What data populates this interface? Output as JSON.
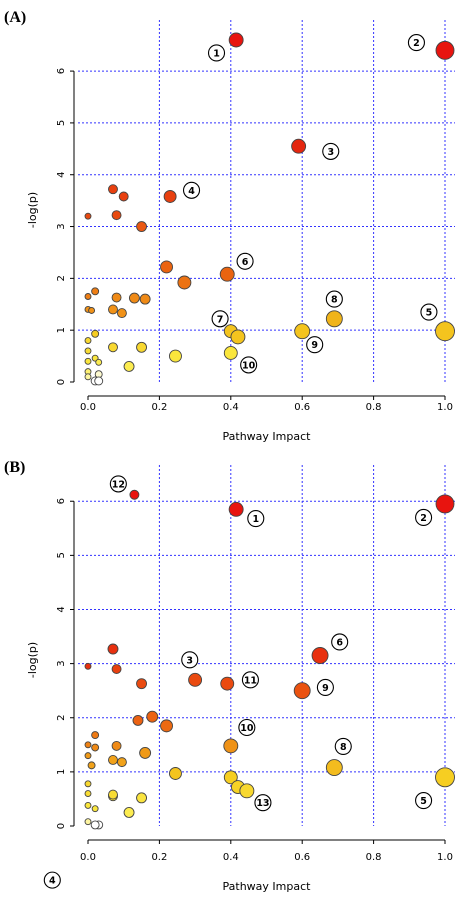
{
  "chart_data": [
    {
      "type": "scatter",
      "panel_label": "(A)",
      "xlabel": "Pathway Impact",
      "ylabel": "-log(p)",
      "xlim": [
        0,
        1.0
      ],
      "ylim": [
        0,
        6.6
      ],
      "xticks": [
        "0.0",
        "0.2",
        "0.4",
        "0.6",
        "0.8",
        "1.0"
      ],
      "yticks": [
        "0",
        "1",
        "2",
        "3",
        "4",
        "5",
        "6"
      ],
      "grid": true,
      "points": [
        {
          "x": 0.415,
          "y": 6.6,
          "r": 7,
          "color": "#e8140f"
        },
        {
          "x": 1.0,
          "y": 6.4,
          "r": 9,
          "color": "#e8140f"
        },
        {
          "x": 0.59,
          "y": 4.55,
          "r": 7,
          "color": "#e4260f"
        },
        {
          "x": 0.07,
          "y": 3.72,
          "r": 4.5,
          "color": "#e8400f"
        },
        {
          "x": 0.1,
          "y": 3.58,
          "r": 4.5,
          "color": "#e8400f"
        },
        {
          "x": 0.23,
          "y": 3.58,
          "r": 6,
          "color": "#e8400f"
        },
        {
          "x": 0.0,
          "y": 3.2,
          "r": 3,
          "color": "#e84a10"
        },
        {
          "x": 0.08,
          "y": 3.22,
          "r": 4.5,
          "color": "#e84a10"
        },
        {
          "x": 0.15,
          "y": 3.0,
          "r": 5,
          "color": "#ea5812"
        },
        {
          "x": 0.22,
          "y": 2.22,
          "r": 6,
          "color": "#ea6410"
        },
        {
          "x": 0.39,
          "y": 2.08,
          "r": 7,
          "color": "#ea6410"
        },
        {
          "x": 0.27,
          "y": 1.92,
          "r": 6.5,
          "color": "#ec7212"
        },
        {
          "x": 0.02,
          "y": 1.75,
          "r": 3.5,
          "color": "#ee7e14"
        },
        {
          "x": 0.0,
          "y": 1.65,
          "r": 3,
          "color": "#ee7e14"
        },
        {
          "x": 0.08,
          "y": 1.63,
          "r": 4.5,
          "color": "#ef8a16"
        },
        {
          "x": 0.13,
          "y": 1.62,
          "r": 5,
          "color": "#ef8a16"
        },
        {
          "x": 0.16,
          "y": 1.6,
          "r": 5,
          "color": "#ef8a16"
        },
        {
          "x": 0.07,
          "y": 1.4,
          "r": 4.5,
          "color": "#f19218"
        },
        {
          "x": 0.095,
          "y": 1.33,
          "r": 4.5,
          "color": "#f19218"
        },
        {
          "x": 0.0,
          "y": 1.4,
          "r": 3,
          "color": "#f19218"
        },
        {
          "x": 0.01,
          "y": 1.38,
          "r": 3,
          "color": "#f19218"
        },
        {
          "x": 0.69,
          "y": 1.22,
          "r": 8,
          "color": "#f0b41a"
        },
        {
          "x": 1.0,
          "y": 0.98,
          "r": 9.5,
          "color": "#f4c41e"
        },
        {
          "x": 0.6,
          "y": 0.98,
          "r": 7.5,
          "color": "#f4c41e"
        },
        {
          "x": 0.4,
          "y": 0.98,
          "r": 6.5,
          "color": "#f4c41e"
        },
        {
          "x": 0.42,
          "y": 0.87,
          "r": 7,
          "color": "#f4c41e"
        },
        {
          "x": 0.02,
          "y": 0.93,
          "r": 3.5,
          "color": "#f6cc22"
        },
        {
          "x": 0.0,
          "y": 0.8,
          "r": 3,
          "color": "#f8d830"
        },
        {
          "x": 0.07,
          "y": 0.67,
          "r": 4.5,
          "color": "#f8d830"
        },
        {
          "x": 0.15,
          "y": 0.67,
          "r": 5,
          "color": "#f8d830"
        },
        {
          "x": 0.0,
          "y": 0.6,
          "r": 3,
          "color": "#f8dc34"
        },
        {
          "x": 0.4,
          "y": 0.56,
          "r": 6.5,
          "color": "#fae63c"
        },
        {
          "x": 0.245,
          "y": 0.5,
          "r": 6,
          "color": "#fae63c"
        },
        {
          "x": 0.02,
          "y": 0.46,
          "r": 3,
          "color": "#fae63c"
        },
        {
          "x": 0.0,
          "y": 0.4,
          "r": 3,
          "color": "#fae63c"
        },
        {
          "x": 0.115,
          "y": 0.3,
          "r": 5,
          "color": "#fcec50"
        },
        {
          "x": 0.03,
          "y": 0.38,
          "r": 3,
          "color": "#fcec50"
        },
        {
          "x": 0.0,
          "y": 0.2,
          "r": 3,
          "color": "#fdf070"
        },
        {
          "x": 0.0,
          "y": 0.1,
          "r": 3,
          "color": "#fdf6a0"
        },
        {
          "x": 0.03,
          "y": 0.15,
          "r": 3.5,
          "color": "#fefacf"
        },
        {
          "x": 0.02,
          "y": 0.02,
          "r": 4,
          "color": "#ffffff"
        },
        {
          "x": 0.03,
          "y": 0.02,
          "r": 4,
          "color": "#ffffff"
        }
      ],
      "annotations": [
        {
          "label": "1",
          "x": 0.36,
          "y": 6.35
        },
        {
          "label": "2",
          "x": 0.92,
          "y": 6.55
        },
        {
          "label": "3",
          "x": 0.68,
          "y": 4.45
        },
        {
          "label": "4",
          "x": 0.29,
          "y": 3.7
        },
        {
          "label": "5",
          "x": 0.955,
          "y": 1.35
        },
        {
          "label": "6",
          "x": 0.44,
          "y": 2.33
        },
        {
          "label": "7",
          "x": 0.37,
          "y": 1.22
        },
        {
          "label": "8",
          "x": 0.69,
          "y": 1.6
        },
        {
          "label": "9",
          "x": 0.635,
          "y": 0.72
        },
        {
          "label": "10",
          "x": 0.45,
          "y": 0.33
        }
      ]
    },
    {
      "type": "scatter",
      "panel_label": "(B)",
      "xlabel": "Pathway Impact",
      "ylabel": "-log(p)",
      "xlim": [
        0,
        1.0
      ],
      "ylim": [
        0,
        6.3
      ],
      "xticks": [
        "0.0",
        "0.2",
        "0.4",
        "0.6",
        "0.8",
        "1.0"
      ],
      "yticks": [
        "0",
        "1",
        "2",
        "3",
        "4",
        "5",
        "6"
      ],
      "grid": true,
      "points": [
        {
          "x": 0.13,
          "y": 6.12,
          "r": 4.5,
          "color": "#e8140f"
        },
        {
          "x": 0.415,
          "y": 5.85,
          "r": 7,
          "color": "#e8140f"
        },
        {
          "x": 1.0,
          "y": 5.95,
          "r": 9,
          "color": "#e8140f"
        },
        {
          "x": 0.07,
          "y": 3.27,
          "r": 5,
          "color": "#e8300f"
        },
        {
          "x": 0.65,
          "y": 3.15,
          "r": 8,
          "color": "#e8300f"
        },
        {
          "x": 0.0,
          "y": 2.95,
          "r": 3,
          "color": "#e8300f"
        },
        {
          "x": 0.08,
          "y": 2.9,
          "r": 4.5,
          "color": "#e8400f"
        },
        {
          "x": 0.3,
          "y": 2.7,
          "r": 6.5,
          "color": "#ea4a10"
        },
        {
          "x": 0.39,
          "y": 2.63,
          "r": 6.5,
          "color": "#ea4a10"
        },
        {
          "x": 0.15,
          "y": 2.63,
          "r": 5,
          "color": "#ea4a10"
        },
        {
          "x": 0.6,
          "y": 2.5,
          "r": 8,
          "color": "#ea5210"
        },
        {
          "x": 0.18,
          "y": 2.02,
          "r": 5.5,
          "color": "#ec6212"
        },
        {
          "x": 0.14,
          "y": 1.95,
          "r": 5,
          "color": "#ec6212"
        },
        {
          "x": 0.22,
          "y": 1.85,
          "r": 6,
          "color": "#ec6a12"
        },
        {
          "x": 0.02,
          "y": 1.68,
          "r": 3.5,
          "color": "#ee7a14"
        },
        {
          "x": 0.0,
          "y": 1.5,
          "r": 3,
          "color": "#ee8214"
        },
        {
          "x": 0.08,
          "y": 1.48,
          "r": 4.5,
          "color": "#ef8a16"
        },
        {
          "x": 0.4,
          "y": 1.48,
          "r": 7,
          "color": "#ef9216"
        },
        {
          "x": 0.02,
          "y": 1.45,
          "r": 3.5,
          "color": "#ef8a16"
        },
        {
          "x": 0.16,
          "y": 1.35,
          "r": 5.5,
          "color": "#f09a18"
        },
        {
          "x": 0.0,
          "y": 1.3,
          "r": 3,
          "color": "#f09a18"
        },
        {
          "x": 0.07,
          "y": 1.22,
          "r": 4.5,
          "color": "#f1a21a"
        },
        {
          "x": 0.095,
          "y": 1.18,
          "r": 4.5,
          "color": "#f1a21a"
        },
        {
          "x": 0.01,
          "y": 1.12,
          "r": 3.5,
          "color": "#f1a21a"
        },
        {
          "x": 0.69,
          "y": 1.08,
          "r": 8,
          "color": "#f3bc1e"
        },
        {
          "x": 0.245,
          "y": 0.97,
          "r": 6,
          "color": "#f4c41e"
        },
        {
          "x": 1.0,
          "y": 0.9,
          "r": 9.5,
          "color": "#f6ce22"
        },
        {
          "x": 0.4,
          "y": 0.9,
          "r": 6.5,
          "color": "#f6ce22"
        },
        {
          "x": 0.42,
          "y": 0.72,
          "r": 6.5,
          "color": "#f6d226"
        },
        {
          "x": 0.445,
          "y": 0.65,
          "r": 7,
          "color": "#f8d830"
        },
        {
          "x": 0.0,
          "y": 0.78,
          "r": 3,
          "color": "#f8d830"
        },
        {
          "x": 0.0,
          "y": 0.6,
          "r": 3,
          "color": "#f8dc34"
        },
        {
          "x": 0.07,
          "y": 0.55,
          "r": 4.5,
          "color": "#f8dc34"
        },
        {
          "x": 0.07,
          "y": 0.58,
          "r": 4.5,
          "color": "#f8dc34"
        },
        {
          "x": 0.15,
          "y": 0.52,
          "r": 5,
          "color": "#fae440"
        },
        {
          "x": 0.0,
          "y": 0.38,
          "r": 3,
          "color": "#fae63c"
        },
        {
          "x": 0.02,
          "y": 0.32,
          "r": 3,
          "color": "#fae63c"
        },
        {
          "x": 0.115,
          "y": 0.25,
          "r": 5,
          "color": "#fcec50"
        },
        {
          "x": 0.0,
          "y": 0.08,
          "r": 3,
          "color": "#fdf4a0"
        },
        {
          "x": 0.03,
          "y": 0.02,
          "r": 4,
          "color": "#ffffff"
        },
        {
          "x": 0.02,
          "y": 0.02,
          "r": 4,
          "color": "#ffffff"
        }
      ],
      "annotations": [
        {
          "label": "12",
          "x": 0.085,
          "y": 6.32
        },
        {
          "label": "1",
          "x": 0.47,
          "y": 5.68
        },
        {
          "label": "2",
          "x": 0.94,
          "y": 5.7
        },
        {
          "label": "3",
          "x": 0.285,
          "y": 3.07
        },
        {
          "label": "4",
          "x": -0.1,
          "y": -1.0
        },
        {
          "label": "11",
          "x": 0.455,
          "y": 2.7
        },
        {
          "label": "6",
          "x": 0.705,
          "y": 3.4
        },
        {
          "label": "9",
          "x": 0.665,
          "y": 2.56
        },
        {
          "label": "10",
          "x": 0.445,
          "y": 1.82
        },
        {
          "label": "8",
          "x": 0.715,
          "y": 1.47
        },
        {
          "label": "13",
          "x": 0.49,
          "y": 0.43
        },
        {
          "label": "5",
          "x": 0.94,
          "y": 0.47
        }
      ]
    }
  ]
}
